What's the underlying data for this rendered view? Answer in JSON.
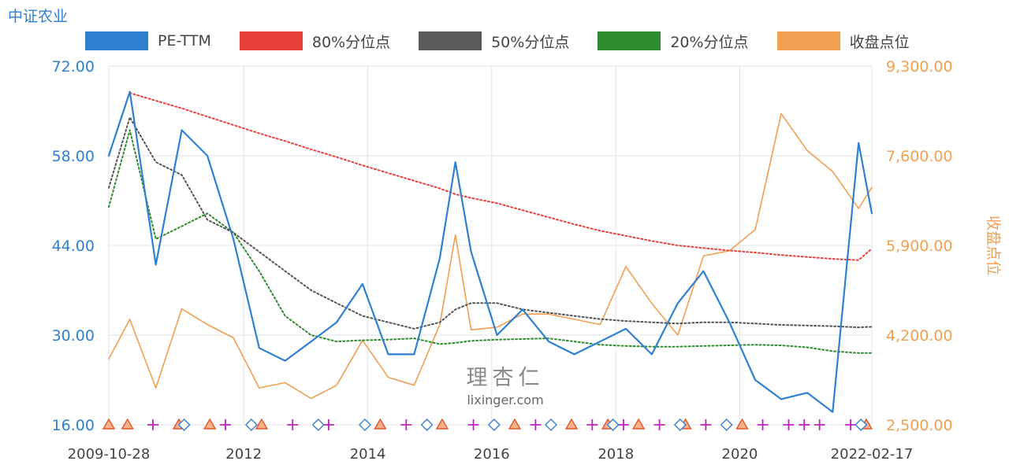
{
  "title": "中证农业",
  "watermark": {
    "logo": "理杏仁",
    "url": "lixinger.com"
  },
  "colors": {
    "pe": "#2f80d1",
    "p80": "#e8413c",
    "p50": "#555555",
    "p20": "#2e8b2e",
    "close": "#f0a050",
    "grid": "#e3e3e3"
  },
  "chart_data": {
    "type": "line",
    "legend_position": "top",
    "grid": true,
    "x": [
      "2009-10-28",
      "2010-03",
      "2010-08",
      "2011-01",
      "2011-06",
      "2011-11",
      "2012-04",
      "2012-09",
      "2013-02",
      "2013-07",
      "2013-12",
      "2014-05",
      "2014-10",
      "2015-03",
      "2015-06",
      "2015-09",
      "2016-02",
      "2016-07",
      "2016-12",
      "2017-05",
      "2017-10",
      "2018-03",
      "2018-08",
      "2019-01",
      "2019-06",
      "2019-11",
      "2020-04",
      "2020-09",
      "2021-02",
      "2021-07",
      "2021-12",
      "2022-02-17"
    ],
    "x_ticks": [
      "2009-10-28",
      "2012",
      "2014",
      "2016",
      "2018",
      "2020",
      "2022-02-17"
    ],
    "y_left": {
      "ticks": [
        "72.00",
        "58.00",
        "44.00",
        "30.00",
        "16.00"
      ],
      "range": [
        16,
        72
      ]
    },
    "y_right": {
      "label": "收盘点位",
      "ticks": [
        "9,300.00",
        "7,600.00",
        "5,900.00",
        "4,200.00",
        "2,500.00"
      ],
      "range": [
        2500,
        9300
      ]
    },
    "series": [
      {
        "name": "PE-TTM",
        "axis": "left",
        "style": "solid",
        "color": "#2f80d1",
        "values": [
          58,
          68,
          41,
          62,
          58,
          45,
          28,
          26,
          29,
          32,
          38,
          27,
          27,
          42,
          57,
          43,
          30,
          34,
          29,
          27,
          29,
          31,
          27,
          35,
          40,
          32,
          23,
          20,
          21,
          18,
          60,
          49
        ]
      },
      {
        "name": "80%分位点",
        "axis": "left",
        "style": "dotted",
        "color": "#e8413c",
        "values": [
          null,
          67.8,
          66.6,
          65.4,
          64.1,
          62.8,
          61.5,
          60.3,
          59.0,
          57.8,
          56.5,
          55.3,
          54.1,
          52.9,
          52.0,
          51.4,
          50.6,
          49.5,
          48.4,
          47.3,
          46.3,
          45.5,
          44.7,
          44.0,
          43.6,
          43.2,
          42.9,
          42.5,
          42.2,
          41.9,
          41.7,
          43.5
        ]
      },
      {
        "name": "50%分位点",
        "axis": "left",
        "style": "dotted",
        "color": "#555555",
        "values": [
          53,
          64,
          57,
          55,
          48,
          46,
          43,
          40,
          37,
          35,
          33,
          32,
          31,
          32,
          34,
          35,
          35,
          34,
          33.5,
          33,
          32.5,
          32.2,
          32,
          31.8,
          32,
          32,
          31.8,
          31.6,
          31.5,
          31.4,
          31.2,
          31.3
        ]
      },
      {
        "name": "20%分位点",
        "axis": "left",
        "style": "dotted",
        "color": "#2e8b2e",
        "values": [
          50,
          62,
          45,
          47,
          49,
          46,
          40,
          33,
          30,
          29,
          29.2,
          29.3,
          29.5,
          28.6,
          28.8,
          29.1,
          29.3,
          29.4,
          29.5,
          29.0,
          28.5,
          28.3,
          28.2,
          28.2,
          28.3,
          28.4,
          28.5,
          28.4,
          28.1,
          27.5,
          27.2,
          27.2
        ]
      },
      {
        "name": "收盘点位",
        "axis": "right",
        "style": "solid",
        "color": "#f0a050",
        "values": [
          3750,
          4500,
          3200,
          4700,
          4400,
          4150,
          3200,
          3300,
          3000,
          3250,
          4100,
          3400,
          3250,
          4400,
          6100,
          4300,
          4350,
          4600,
          4600,
          4500,
          4400,
          5500,
          4800,
          4200,
          5700,
          5800,
          6200,
          8400,
          7700,
          7300,
          6600,
          7000
        ]
      }
    ],
    "markers": {
      "triangle_x": [
        "2009-10-28",
        "2010-02",
        "2010-12",
        "2011-06",
        "2012-04",
        "2014-03",
        "2015-03",
        "2016-05",
        "2017-04",
        "2017-11",
        "2018-05",
        "2019-02",
        "2020-01",
        "2022-01"
      ],
      "plus_x": [
        "2010-07",
        "2011-09",
        "2012-10",
        "2013-05",
        "2014-08",
        "2015-09",
        "2016-09",
        "2017-08",
        "2018-02",
        "2018-09",
        "2019-06",
        "2020-05",
        "2020-10",
        "2021-01",
        "2021-04",
        "2021-10"
      ],
      "diamond_x": [
        "2011-01",
        "2012-02",
        "2013-03",
        "2013-12",
        "2014-12",
        "2016-01",
        "2016-12",
        "2017-12",
        "2019-01",
        "2019-10",
        "2021-12"
      ]
    }
  }
}
